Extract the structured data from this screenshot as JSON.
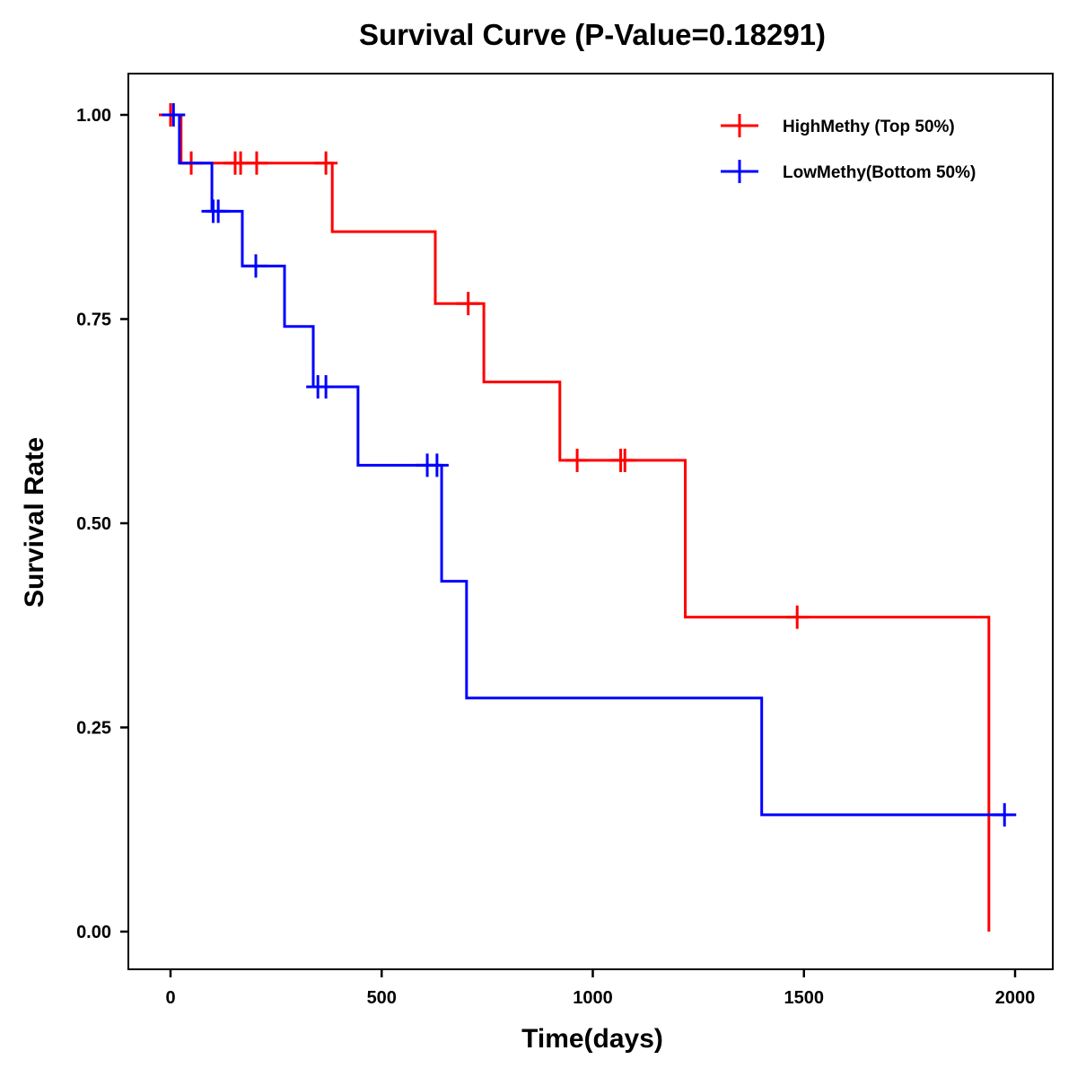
{
  "chart_data": {
    "type": "line",
    "subtype": "kaplan-meier-step",
    "title": "Survival Curve (P-Value=0.18291)",
    "xlabel": "Time(days)",
    "ylabel": "Survival Rate",
    "xlim": [
      -90,
      2090
    ],
    "ylim": [
      -0.05,
      1.05
    ],
    "x_ticks": [
      0,
      500,
      1000,
      1500,
      2000
    ],
    "x_tick_labels": [
      "0",
      "500",
      "1000",
      "1500",
      "2000"
    ],
    "y_ticks": [
      0,
      0.25,
      0.5,
      0.75,
      1.0
    ],
    "y_tick_labels": [
      "0.00",
      "0.25",
      "0.50",
      "0.75",
      "1.00"
    ],
    "grid": false,
    "legend_position": "top-right",
    "series": [
      {
        "name": "HighMethy (Top 50%)",
        "color": "#ff0000",
        "start": 0,
        "steps": [
          {
            "time": 25,
            "survival": 0.941
          },
          {
            "time": 383,
            "survival": 0.857
          },
          {
            "time": 627,
            "survival": 0.769
          },
          {
            "time": 742,
            "survival": 0.673
          },
          {
            "time": 922,
            "survival": 0.577
          },
          {
            "time": 1219,
            "survival": 0.385
          },
          {
            "time": 1938,
            "survival": 0.0
          }
        ],
        "end": 1938,
        "censored": [
          0,
          49,
          153,
          166,
          204,
          368,
          705,
          963,
          1066,
          1076,
          1484
        ]
      },
      {
        "name": "LowMethy(Bottom 50%)",
        "color": "#0000ff",
        "start": 0,
        "steps": [
          {
            "time": 21,
            "survival": 0.941
          },
          {
            "time": 98,
            "survival": 0.882
          },
          {
            "time": 170,
            "survival": 0.815
          },
          {
            "time": 270,
            "survival": 0.741
          },
          {
            "time": 338,
            "survival": 0.667
          },
          {
            "time": 444,
            "survival": 0.571
          },
          {
            "time": 642,
            "survival": 0.429
          },
          {
            "time": 701,
            "survival": 0.286
          },
          {
            "time": 1400,
            "survival": 0.143
          }
        ],
        "end": 1975,
        "censored": [
          7,
          101,
          113,
          202,
          349,
          368,
          608,
          631,
          1975
        ]
      }
    ]
  }
}
